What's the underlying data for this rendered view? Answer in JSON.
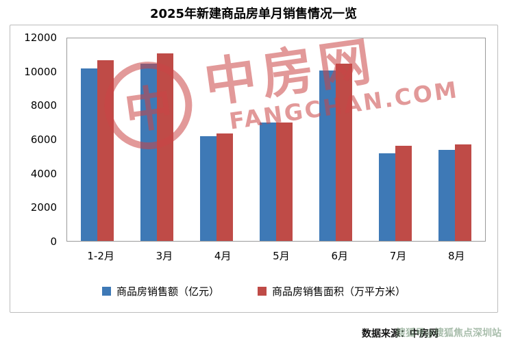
{
  "title": "2025年新建商品房单月销售情况一览",
  "chart_data": {
    "type": "bar",
    "categories": [
      "1-2月",
      "3月",
      "4月",
      "5月",
      "6月",
      "7月",
      "8月"
    ],
    "series": [
      {
        "name": "商品房销售额（亿元）",
        "color": "#3E79B6",
        "values": [
          10200,
          10500,
          6200,
          7000,
          10100,
          5200,
          5400
        ]
      },
      {
        "name": "商品房销售面积（万平方米）",
        "color": "#BF4B47",
        "values": [
          10700,
          11100,
          6350,
          7000,
          10500,
          5650,
          5700
        ]
      }
    ],
    "ylim": [
      0,
      12000
    ],
    "ytick_step": 2000,
    "grid": false,
    "legend_position": "bottom"
  },
  "watermark": {
    "logo_char": "中",
    "main_text": "中房网",
    "sub_text": "FANGCHAN.COM",
    "color": "#CA4646"
  },
  "footer": {
    "source": "数据来源：中房网",
    "overlay_text": "搜狐号@搜狐焦点深圳站"
  }
}
